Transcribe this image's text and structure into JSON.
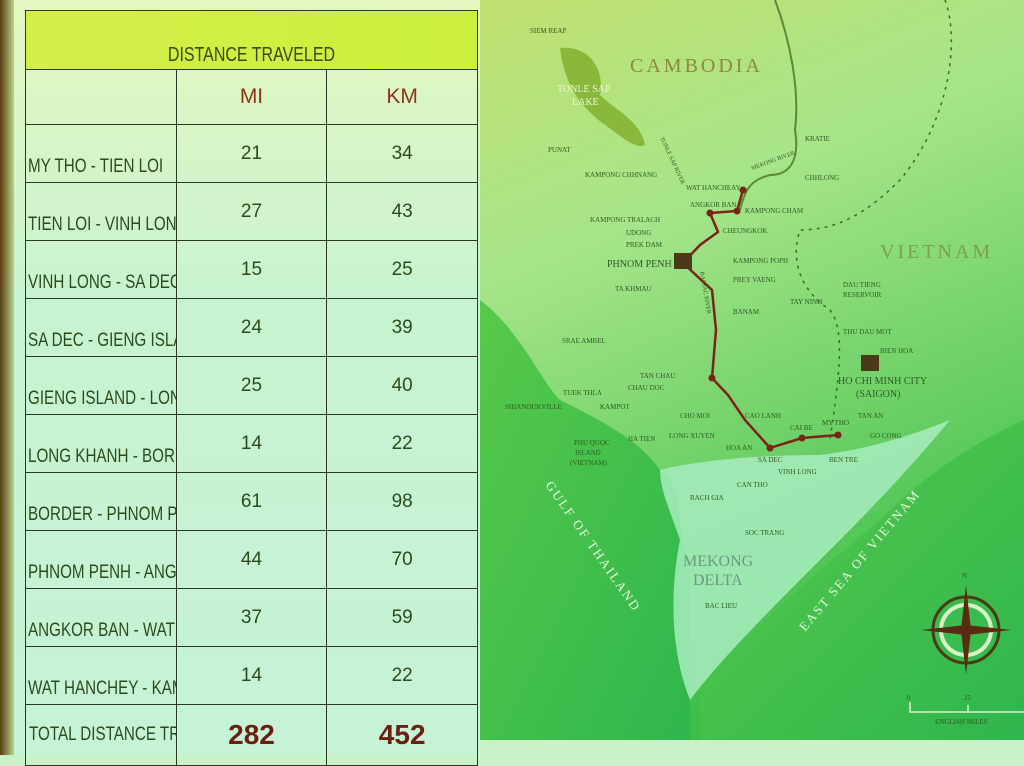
{
  "table": {
    "title": "DISTANCE TRAVELED",
    "columns": [
      "",
      "MI",
      "KM"
    ],
    "rows": [
      {
        "segment": "MY THO - TIEN LOI",
        "mi": "21",
        "km": "34"
      },
      {
        "segment": "TIEN LOI - VINH LONG",
        "mi": "27",
        "km": "43"
      },
      {
        "segment": "VINH LONG - SA DEC",
        "mi": "15",
        "km": "25"
      },
      {
        "segment": "SA DEC - GIENG ISLAND",
        "mi": "24",
        "km": "39"
      },
      {
        "segment": "GIENG ISLAND - LONG KHANH",
        "mi": "25",
        "km": "40"
      },
      {
        "segment": "LONG KHANH - BORDER",
        "mi": "14",
        "km": "22"
      },
      {
        "segment": "BORDER - PHNOM PENH",
        "mi": "61",
        "km": "98"
      },
      {
        "segment": "PHNOM PENH - ANGKOR BAN",
        "mi": "44",
        "km": "70"
      },
      {
        "segment": "ANGKOR BAN - WAT HANCHEY",
        "mi": "37",
        "km": "59"
      },
      {
        "segment": "WAT HANCHEY - KAMPONG CHAM",
        "mi": "14",
        "km": "22"
      }
    ],
    "total": {
      "label": "TOTAL DISTANCE TRAVELLED",
      "mi": "282",
      "km": "452"
    }
  },
  "map": {
    "countries": [
      "CAMBODIA",
      "VIETNAM"
    ],
    "water": [
      "TONLE SAP",
      "LAKE",
      "GULF OF THAILAND",
      "EAST SEA OF VIETNAM",
      "MEKONG RIVER",
      "TONLE SAP RIVER",
      "BASSAC RIVER"
    ],
    "region": [
      "MEKONG",
      "DELTA"
    ],
    "places": [
      "SIEM REAP",
      "PUNAT",
      "KAMPONG CHHNANG",
      "WAT HANCHEAY",
      "ANGKOR BAN",
      "KAMPONG CHAM",
      "KAMPONG TRALACH",
      "CHEUNGKOK",
      "UDONG",
      "PREK DAM",
      "CHHLONG",
      "KRATIE",
      "PHNOM PENH",
      "KAMPONG POPH",
      "PREY VAENG",
      "TA KHMAU",
      "BANAM",
      "TAY NINH",
      "DAU TIENG",
      "RESERVOIR",
      "THU DAU MOT",
      "BIEN HOA",
      "HO CHI MINH CITY",
      "(SAIGON)",
      "SRAE AMBEL",
      "TUEK THLA",
      "SIHANOUKVILLE",
      "KAMPOT",
      "TAN CHAU",
      "CHAU DOC",
      "CHO MOI",
      "CAO LANH",
      "HA TIEN",
      "LONG XUYEN",
      "HOA AN",
      "SA DEC",
      "CAI BE",
      "MY THO",
      "VINH LONG",
      "BEN TRE",
      "TAN AN",
      "GO CONG",
      "CAN THO",
      "RACH GIA",
      "SOC TRANG",
      "BAC LIEU",
      "PHU QUOC",
      "ISLAND",
      "(VIETNAM)"
    ],
    "compass_label": "N",
    "scale": {
      "ticks": [
        "0",
        "25"
      ],
      "unit": "ENGLISH MILES"
    },
    "colors": {
      "route": "#7a2418",
      "sea": "#3fc24a",
      "land": "#a8ecc0",
      "cambodia": "#b9e07a"
    }
  }
}
